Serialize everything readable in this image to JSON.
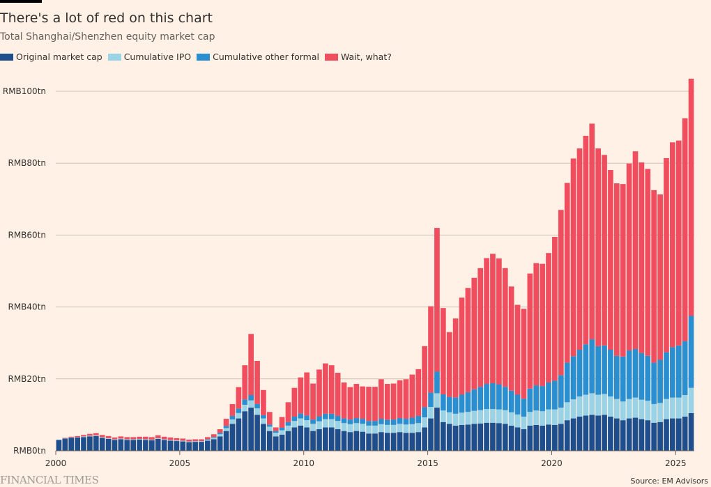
{
  "header": {
    "title": "There's a lot of red on this chart",
    "subtitle": "Total Shanghai/Shenzhen equity market cap"
  },
  "footer": {
    "brand": "FINANCIAL TIMES",
    "source": "Source: EM Advisors"
  },
  "colors": {
    "background": "#fff1e5",
    "original": "#1f4e8c",
    "ipo": "#9bd3e6",
    "other": "#2a8fd0",
    "wait": "#f04e5e",
    "grid": "#ccc1b7"
  },
  "chart_data": {
    "type": "bar",
    "stacked": true,
    "title": "There's a lot of red on this chart",
    "subtitle": "Total Shanghai/Shenzhen equity market cap",
    "xlabel": "",
    "ylabel": "",
    "ylim": [
      0,
      100
    ],
    "xlim": [
      2000,
      2025.75
    ],
    "y_ticks": [
      0,
      20,
      40,
      60,
      80,
      100
    ],
    "y_tick_labels": [
      "RMB0tn",
      "RMB20tn",
      "RMB40tn",
      "RMB60tn",
      "RMB80tn",
      "RMB100tn"
    ],
    "x_ticks": [
      2000,
      2005,
      2010,
      2015,
      2020,
      2025
    ],
    "x_tick_labels": [
      "2000",
      "2005",
      "2010",
      "2015",
      "2020",
      "2025"
    ],
    "grid": true,
    "legend_position": "top-left",
    "unit": "RMB trillion",
    "frequency": "quarterly (estimated from chart)",
    "x": [
      2000.0,
      2000.25,
      2000.5,
      2000.75,
      2001.0,
      2001.25,
      2001.5,
      2001.75,
      2002.0,
      2002.25,
      2002.5,
      2002.75,
      2003.0,
      2003.25,
      2003.5,
      2003.75,
      2004.0,
      2004.25,
      2004.5,
      2004.75,
      2005.0,
      2005.25,
      2005.5,
      2005.75,
      2006.0,
      2006.25,
      2006.5,
      2006.75,
      2007.0,
      2007.25,
      2007.5,
      2007.75,
      2008.0,
      2008.25,
      2008.5,
      2008.75,
      2009.0,
      2009.25,
      2009.5,
      2009.75,
      2010.0,
      2010.25,
      2010.5,
      2010.75,
      2011.0,
      2011.25,
      2011.5,
      2011.75,
      2012.0,
      2012.25,
      2012.5,
      2012.75,
      2013.0,
      2013.25,
      2013.5,
      2013.75,
      2014.0,
      2014.25,
      2014.5,
      2014.75,
      2015.0,
      2015.25,
      2015.5,
      2015.75,
      2016.0,
      2016.25,
      2016.5,
      2016.75,
      2017.0,
      2017.25,
      2017.5,
      2017.75,
      2018.0,
      2018.25,
      2018.5,
      2018.75,
      2019.0,
      2019.25,
      2019.5,
      2019.75,
      2020.0,
      2020.25,
      2020.5,
      2020.75,
      2021.0,
      2021.25,
      2021.5,
      2021.75,
      2022.0,
      2022.25,
      2022.5,
      2022.75,
      2023.0,
      2023.25,
      2023.5,
      2023.75,
      2024.0,
      2024.25,
      2024.5,
      2024.75,
      2025.0,
      2025.25,
      2025.5
    ],
    "series": [
      {
        "name": "Original market cap",
        "values": [
          3.0,
          3.4,
          3.6,
          3.7,
          3.8,
          4.0,
          4.1,
          3.6,
          3.3,
          3.0,
          3.2,
          3.0,
          3.0,
          3.1,
          3.0,
          2.9,
          3.3,
          3.0,
          2.8,
          2.7,
          2.6,
          2.4,
          2.5,
          2.5,
          2.8,
          3.2,
          4.0,
          5.5,
          7.5,
          9.0,
          11.0,
          12.0,
          10.0,
          7.5,
          5.5,
          4.0,
          4.5,
          5.5,
          6.5,
          7.0,
          6.5,
          5.5,
          6.0,
          6.5,
          6.5,
          6.0,
          5.5,
          5.2,
          5.5,
          5.3,
          4.8,
          4.8,
          5.2,
          5.0,
          5.0,
          5.2,
          5.0,
          5.0,
          5.2,
          6.5,
          9.0,
          12.0,
          8.0,
          7.5,
          7.0,
          7.2,
          7.3,
          7.5,
          7.6,
          7.8,
          7.8,
          7.7,
          7.5,
          7.0,
          6.5,
          6.0,
          7.0,
          7.2,
          7.0,
          7.3,
          7.2,
          7.5,
          8.5,
          9.0,
          9.5,
          9.8,
          10.0,
          9.8,
          10.0,
          9.5,
          9.0,
          8.5,
          9.0,
          9.2,
          8.8,
          8.5,
          7.8,
          8.0,
          8.8,
          9.0,
          9.0,
          9.5,
          10.5
        ]
      },
      {
        "name": "Cumulative IPO",
        "values": [
          0.1,
          0.1,
          0.1,
          0.1,
          0.2,
          0.2,
          0.2,
          0.2,
          0.2,
          0.2,
          0.2,
          0.2,
          0.2,
          0.2,
          0.2,
          0.2,
          0.2,
          0.2,
          0.2,
          0.2,
          0.2,
          0.2,
          0.2,
          0.2,
          0.3,
          0.4,
          0.6,
          0.8,
          1.2,
          1.5,
          1.8,
          2.0,
          1.8,
          1.5,
          1.2,
          1.0,
          1.2,
          1.5,
          1.8,
          2.0,
          2.0,
          2.0,
          2.2,
          2.3,
          2.3,
          2.3,
          2.2,
          2.2,
          2.2,
          2.2,
          2.2,
          2.2,
          2.2,
          2.2,
          2.2,
          2.3,
          2.3,
          2.4,
          2.5,
          2.8,
          3.2,
          4.0,
          3.2,
          3.2,
          3.3,
          3.4,
          3.5,
          3.6,
          3.7,
          3.8,
          3.8,
          3.8,
          3.8,
          3.7,
          3.6,
          3.5,
          3.8,
          4.0,
          4.0,
          4.2,
          4.3,
          4.5,
          5.0,
          5.3,
          5.6,
          5.8,
          6.0,
          5.8,
          5.8,
          5.6,
          5.4,
          5.2,
          5.4,
          5.6,
          5.4,
          5.4,
          5.2,
          5.3,
          5.6,
          5.8,
          5.8,
          6.0,
          7.0
        ]
      },
      {
        "name": "Cumulative other formal",
        "values": [
          0.0,
          0.0,
          0.0,
          0.0,
          0.0,
          0.0,
          0.0,
          0.0,
          0.0,
          0.0,
          0.0,
          0.0,
          0.0,
          0.0,
          0.0,
          0.0,
          0.0,
          0.0,
          0.0,
          0.0,
          0.0,
          0.0,
          0.0,
          0.0,
          0.1,
          0.2,
          0.4,
          0.6,
          1.0,
          1.2,
          1.5,
          1.5,
          1.2,
          0.9,
          0.6,
          0.5,
          0.7,
          1.0,
          1.2,
          1.4,
          1.3,
          1.2,
          1.4,
          1.5,
          1.5,
          1.4,
          1.3,
          1.3,
          1.4,
          1.4,
          1.3,
          1.3,
          1.5,
          1.4,
          1.5,
          1.6,
          1.6,
          1.8,
          2.0,
          2.8,
          4.0,
          6.0,
          4.5,
          4.3,
          4.5,
          5.0,
          5.5,
          6.0,
          6.5,
          7.0,
          7.2,
          7.0,
          6.5,
          6.0,
          5.5,
          5.0,
          6.5,
          7.0,
          7.0,
          7.5,
          8.0,
          9.0,
          11.0,
          12.0,
          13.0,
          14.0,
          15.0,
          13.5,
          13.5,
          13.0,
          12.0,
          12.5,
          13.5,
          13.5,
          13.0,
          12.5,
          11.5,
          12.0,
          13.0,
          14.0,
          14.5,
          15.0,
          20.0
        ]
      },
      {
        "name": "Wait, what?",
        "values": [
          0.0,
          0.1,
          0.2,
          0.3,
          0.4,
          0.5,
          0.6,
          0.6,
          0.6,
          0.5,
          0.6,
          0.6,
          0.6,
          0.6,
          0.7,
          0.7,
          0.8,
          0.7,
          0.7,
          0.6,
          0.6,
          0.5,
          0.5,
          0.5,
          0.6,
          0.8,
          1.0,
          2.0,
          3.3,
          6.0,
          9.5,
          17.0,
          12.0,
          7.0,
          3.5,
          1.0,
          3.0,
          5.5,
          8.0,
          10.0,
          12.0,
          10.0,
          13.0,
          14.0,
          13.5,
          12.0,
          10.0,
          9.0,
          9.5,
          9.0,
          9.5,
          9.5,
          11.0,
          10.0,
          10.0,
          10.5,
          11.0,
          12.0,
          13.0,
          17.0,
          24.0,
          40.0,
          24.0,
          18.0,
          22.0,
          27.0,
          29.0,
          31.0,
          33.0,
          35.0,
          36.0,
          35.0,
          33.0,
          29.0,
          25.0,
          25.0,
          32.0,
          34.0,
          34.0,
          36.0,
          40.0,
          46.0,
          50.0,
          55.0,
          56.0,
          58.0,
          60.0,
          55.0,
          53.0,
          50.0,
          48.0,
          48.0,
          52.0,
          55.0,
          53.0,
          52.0,
          48.0,
          46.0,
          54.0,
          57.0,
          57.0,
          62.0,
          66.0
        ]
      }
    ]
  }
}
